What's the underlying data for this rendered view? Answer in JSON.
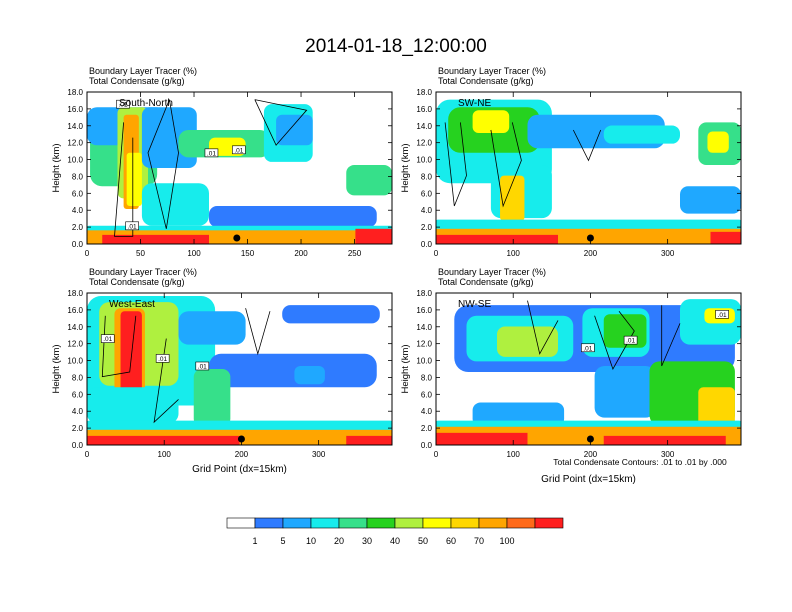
{
  "title": "2014-01-18_12:00:00",
  "colors": {
    "levels": [
      "#ffffff",
      "#2f7bff",
      "#1fa8ff",
      "#17ecec",
      "#36e08a",
      "#26d21f",
      "#aff03f",
      "#ffff00",
      "#ffd700",
      "#ffa500",
      "#ff6a1a",
      "#ff1f1f"
    ],
    "contour": "#000000"
  },
  "colorbar": {
    "labels": [
      "1",
      "5",
      "10",
      "20",
      "30",
      "40",
      "50",
      "60",
      "70",
      "100"
    ]
  },
  "footnote": "Total Condensate Contours: .01 to .01 by .000",
  "chart_data": [
    {
      "type": "heatmap",
      "name": "South-North",
      "tracer_label": "Boundary Layer Tracer   (%)",
      "condensate_label": "Total Condensate   (g/kg)",
      "ylabel": "Height (km)",
      "xlabel": "",
      "ylim": [
        0,
        18
      ],
      "yticks": [
        "0.0",
        "2.0",
        "4.0",
        "6.0",
        "8.0",
        "10.0",
        "12.0",
        "14.0",
        "16.0",
        "18.0"
      ],
      "xlim": [
        0,
        285
      ],
      "xticks": [
        0,
        50,
        100,
        150,
        200,
        250
      ],
      "contour_labels": [
        ".01",
        ".01",
        ".01",
        ".01"
      ],
      "marker_x": 140
    },
    {
      "type": "heatmap",
      "name": "SW-NE",
      "tracer_label": "Boundary Layer Tracer   (%)",
      "condensate_label": "Total Condensate   (g/kg)",
      "ylabel": "Height (km)",
      "xlabel": "",
      "ylim": [
        0,
        18
      ],
      "yticks": [
        "0.0",
        "2.0",
        "4.0",
        "6.0",
        "8.0",
        "10.0",
        "12.0",
        "14.0",
        "16.0",
        "18.0"
      ],
      "xlim": [
        0,
        395
      ],
      "xticks": [
        0,
        100,
        200,
        300
      ],
      "contour_labels": [],
      "marker_x": 200
    },
    {
      "type": "heatmap",
      "name": "West-East",
      "tracer_label": "Boundary Layer Tracer   (%)",
      "condensate_label": "Total Condensate   (g/kg)",
      "ylabel": "Height (km)",
      "xlabel": "Grid Point (dx=15km)",
      "ylim": [
        0,
        18
      ],
      "yticks": [
        "0.0",
        "2.0",
        "4.0",
        "6.0",
        "8.0",
        "10.0",
        "12.0",
        "14.0",
        "16.0",
        "18.0"
      ],
      "xlim": [
        0,
        395
      ],
      "xticks": [
        0,
        100,
        200,
        300
      ],
      "contour_labels": [
        ".01",
        ".01",
        ".01"
      ],
      "marker_x": 200
    },
    {
      "type": "heatmap",
      "name": "NW-SE",
      "tracer_label": "Boundary Layer Tracer   (%)",
      "condensate_label": "Total Condensate   (g/kg)",
      "ylabel": "Height (km)",
      "xlabel": "Grid Point (dx=15km)",
      "ylim": [
        0,
        18
      ],
      "yticks": [
        "0.0",
        "2.0",
        "4.0",
        "6.0",
        "8.0",
        "10.0",
        "12.0",
        "14.0",
        "16.0",
        "18.0"
      ],
      "xlim": [
        0,
        395
      ],
      "xticks": [
        0,
        100,
        200,
        300
      ],
      "contour_labels": [
        ".01",
        ".01",
        ".01"
      ],
      "marker_x": 200
    }
  ]
}
